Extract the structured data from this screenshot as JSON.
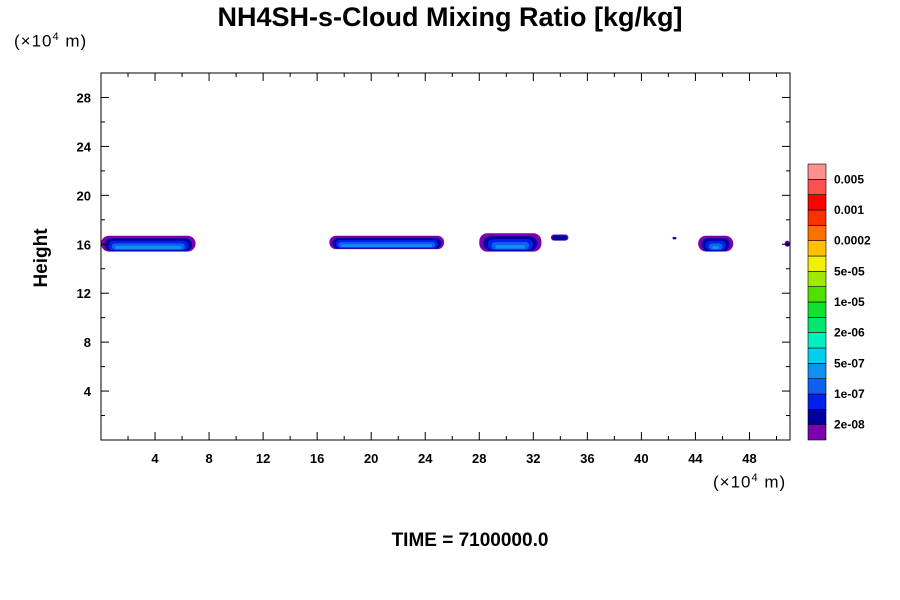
{
  "chart_data": {
    "type": "heatmap",
    "title": "NH4SH-s-Cloud Mixing Ratio [kg/kg]",
    "ylabel": "Height",
    "x_unit": "(×10⁴ m)",
    "y_unit": "(×10⁴ m)",
    "footer": "TIME = 7100000.0",
    "xlim": [
      0,
      51
    ],
    "ylim": [
      0,
      30
    ],
    "x_ticks": [
      4,
      8,
      12,
      16,
      20,
      24,
      28,
      32,
      36,
      40,
      44,
      48
    ],
    "y_ticks": [
      4,
      8,
      12,
      16,
      20,
      24,
      28
    ],
    "colorbar": {
      "colors": [
        "#7a00b0",
        "#0000a0",
        "#0020e8",
        "#1060f0",
        "#1090f0",
        "#00d0f0",
        "#00f0c0",
        "#00e870",
        "#10e030",
        "#50e000",
        "#a0e800",
        "#f0f000",
        "#ffc000",
        "#ff7000",
        "#ff3000",
        "#ff0000",
        "#ff5050",
        "#ff9090"
      ],
      "labels": [
        "2e-08",
        "1e-07",
        "5e-07",
        "2e-06",
        "1e-05",
        "5e-05",
        "0.0002",
        "0.001",
        "0.005"
      ]
    },
    "cloud_patches": [
      {
        "x_start": 0.0,
        "x_end": 7.0,
        "y_bottom": 15.4,
        "y_top": 16.7,
        "peak_level": "2e-06"
      },
      {
        "x_start": 16.9,
        "x_end": 25.4,
        "y_bottom": 15.6,
        "y_top": 16.7,
        "peak_level": "5e-07"
      },
      {
        "x_start": 28.0,
        "x_end": 32.6,
        "y_bottom": 15.4,
        "y_top": 16.9,
        "peak_level": "2e-06"
      },
      {
        "x_start": 33.3,
        "x_end": 34.6,
        "y_bottom": 16.3,
        "y_top": 16.8,
        "peak_level": "2e-08"
      },
      {
        "x_start": 42.3,
        "x_end": 42.6,
        "y_bottom": 16.4,
        "y_top": 16.6,
        "peak_level": "2e-08"
      },
      {
        "x_start": 44.2,
        "x_end": 46.8,
        "y_bottom": 15.4,
        "y_top": 16.7,
        "peak_level": "5e-07"
      },
      {
        "x_start": 50.6,
        "x_end": 51.0,
        "y_bottom": 15.8,
        "y_top": 16.3,
        "peak_level": "2e-08"
      }
    ]
  }
}
